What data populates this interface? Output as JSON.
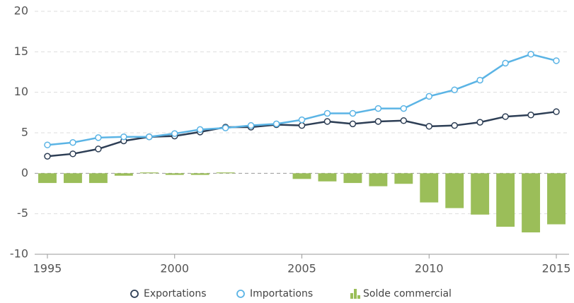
{
  "chart_data": {
    "type": "line-bar",
    "x": [
      1995,
      1996,
      1997,
      1998,
      1999,
      2000,
      2001,
      2002,
      2003,
      2004,
      2005,
      2006,
      2007,
      2008,
      2009,
      2010,
      2011,
      2012,
      2013,
      2014,
      2015
    ],
    "series": [
      {
        "name": "Exportations",
        "type": "line",
        "color": "#2d3e55",
        "values": [
          2.1,
          2.4,
          3.0,
          4.0,
          4.5,
          4.6,
          5.1,
          5.7,
          5.7,
          6.0,
          5.9,
          6.4,
          6.1,
          6.4,
          6.5,
          5.8,
          5.9,
          6.3,
          7.0,
          7.2,
          7.6
        ]
      },
      {
        "name": "Importations",
        "type": "line",
        "color": "#5bb4e5",
        "values": [
          3.5,
          3.8,
          4.4,
          4.5,
          4.5,
          4.9,
          5.4,
          5.6,
          5.9,
          6.1,
          6.6,
          7.4,
          7.4,
          8.0,
          8.0,
          9.5,
          10.3,
          11.5,
          13.6,
          14.7,
          13.9
        ]
      },
      {
        "name": "Solde commercial",
        "type": "bar",
        "color": "#9bbe59",
        "values": [
          -1.2,
          -1.2,
          -1.2,
          -0.3,
          0.1,
          -0.2,
          -0.2,
          0.1,
          0,
          0,
          -0.7,
          -1.0,
          -1.2,
          -1.6,
          -1.3,
          -3.6,
          -4.3,
          -5.1,
          -6.6,
          -7.3,
          -6.3
        ]
      }
    ],
    "xlim": [
      1994.5,
      2015.5
    ],
    "xticks": [
      1995,
      2000,
      2005,
      2010,
      2015
    ],
    "ylim": [
      -10,
      20
    ],
    "yticks": [
      -10,
      -5,
      0,
      5,
      10,
      15,
      20
    ],
    "grid": true,
    "legend": "bottom"
  }
}
